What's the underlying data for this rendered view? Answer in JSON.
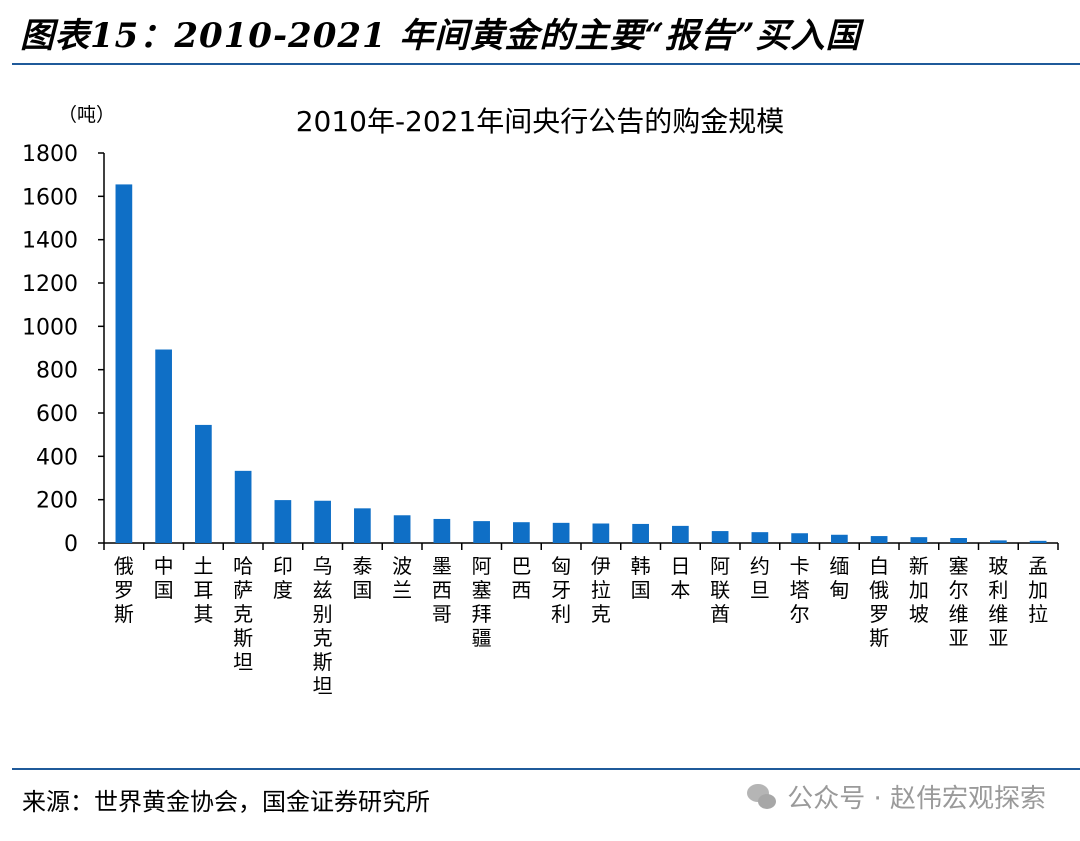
{
  "figure_title": "图表15：2010-2021 年间黄金的主要“报告”买入国",
  "source": "来源：世界黄金协会，国金证券研究所",
  "watermark": "公众号 · 赵伟宏观探索",
  "colors": {
    "bar": "#0f6fc6",
    "rule": "#1f5a9a",
    "axis": "#000000"
  },
  "chart_data": {
    "type": "bar",
    "title": "2010年-2021年间央行公告的购金规模",
    "unit": "（吨）",
    "ylim": [
      0,
      1800
    ],
    "yticks": [
      0,
      200,
      400,
      600,
      800,
      1000,
      1200,
      1400,
      1600,
      1800
    ],
    "grid": false,
    "legend": "none",
    "categories": [
      "俄罗斯",
      "中国",
      "土耳其",
      "哈萨克斯坦",
      "印度",
      "乌兹别克斯坦",
      "泰国",
      "波兰",
      "墨西哥",
      "阿塞拜疆",
      "巴西",
      "匈牙利",
      "伊拉克",
      "韩国",
      "日本",
      "阿联酋",
      "约旦",
      "卡塔尔",
      "缅甸",
      "白俄罗斯",
      "新加坡",
      "塞尔维亚",
      "玻利维亚",
      "孟加拉"
    ],
    "values": [
      1655,
      893,
      545,
      333,
      198,
      195,
      160,
      128,
      111,
      101,
      96,
      93,
      90,
      88,
      79,
      55,
      50,
      45,
      38,
      32,
      27,
      23,
      12,
      10
    ]
  }
}
